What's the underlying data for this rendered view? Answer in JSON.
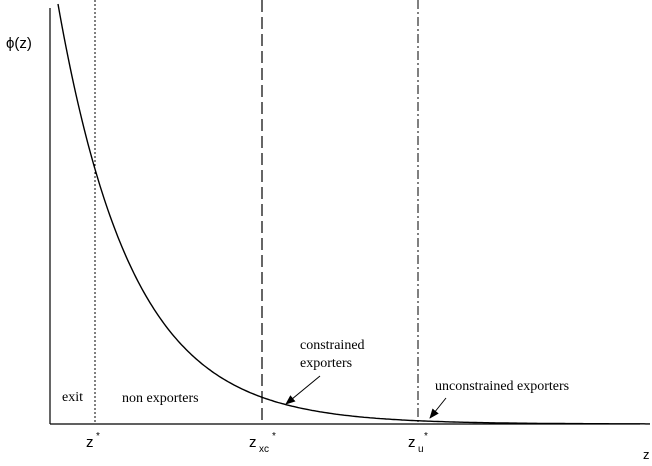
{
  "axes": {
    "y_label": "ϕ(z)",
    "x_label": "z"
  },
  "thresholds": [
    {
      "main": "z",
      "sub": "",
      "sup": "*",
      "line_style": "dotted"
    },
    {
      "main": "z",
      "sub": "xc",
      "sup": "*",
      "line_style": "dashed"
    },
    {
      "main": "z",
      "sub": "u",
      "sup": "*",
      "line_style": "dash-dot"
    }
  ],
  "regions": {
    "exit": "exit",
    "non_exporters": "non exporters",
    "constrained_line1": "constrained",
    "constrained_line2": "exporters",
    "unconstrained": "unconstrained exporters"
  },
  "curve": {
    "type": "decreasing density",
    "color": "#000000"
  }
}
